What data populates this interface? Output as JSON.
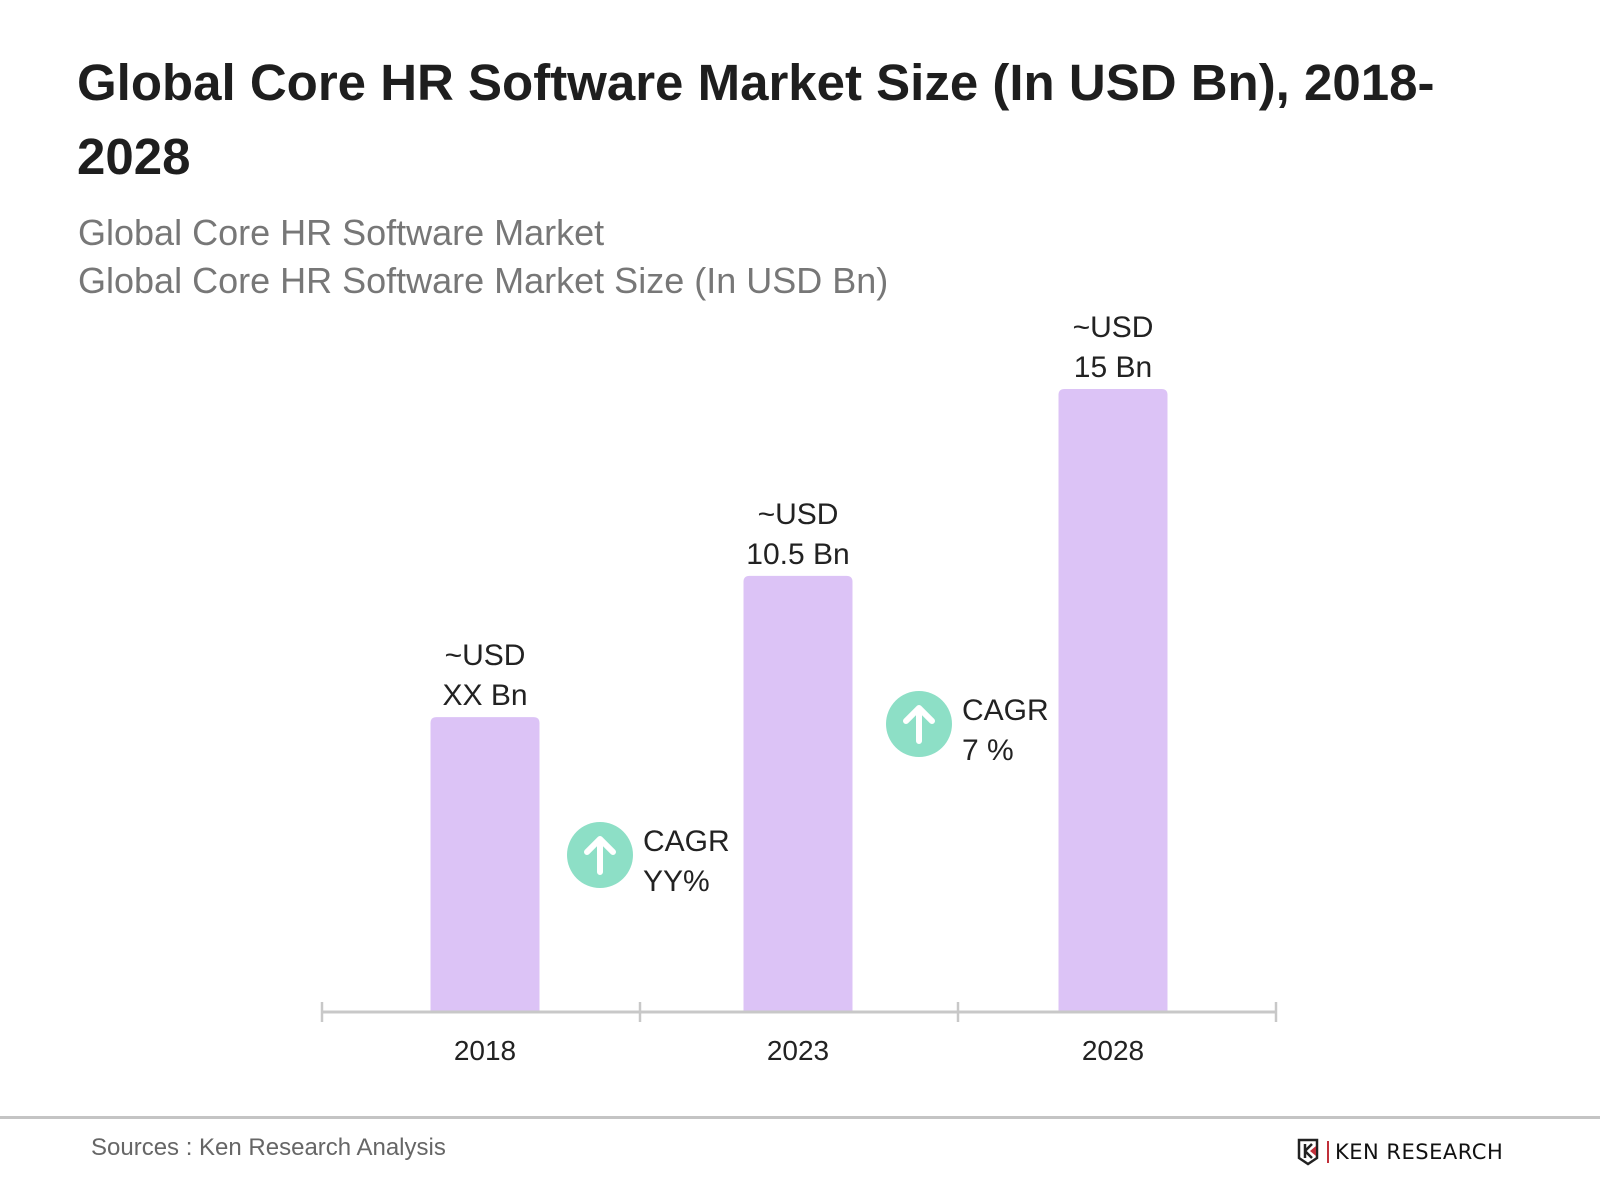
{
  "chart_data": {
    "type": "bar",
    "title": "Global Core HR Software Market Size (In USD Bn), 2018-2028",
    "subtitle": [
      "Global Core HR Software Market",
      "Global Core HR Software Market Size (In USD Bn)"
    ],
    "categories": [
      "2018",
      "2023",
      "2028"
    ],
    "values": [
      7.1,
      10.5,
      15
    ],
    "data_labels": [
      [
        "~USD",
        "XX Bn"
      ],
      [
        "~USD",
        "10.5 Bn"
      ],
      [
        "~USD",
        "15 Bn"
      ]
    ],
    "annotations": [
      {
        "between": [
          "2018",
          "2023"
        ],
        "lines": [
          "CAGR",
          "YY%"
        ],
        "icon": "arrow-up-circle-icon"
      },
      {
        "between": [
          "2023",
          "2028"
        ],
        "lines": [
          "CAGR",
          "7 %"
        ],
        "icon": "arrow-up-circle-icon"
      }
    ],
    "xlabel": "",
    "ylabel": "",
    "ylim": [
      0,
      15
    ],
    "y_axis_visible": false,
    "grid": false,
    "colors": {
      "bar": "#dcc3f6",
      "axis": "#c8c8c8",
      "cagr_icon": "#8ddfc6"
    }
  },
  "footer": {
    "sources": "Sources : Ken Research Analysis",
    "logo": "KEN RESEARCH"
  }
}
